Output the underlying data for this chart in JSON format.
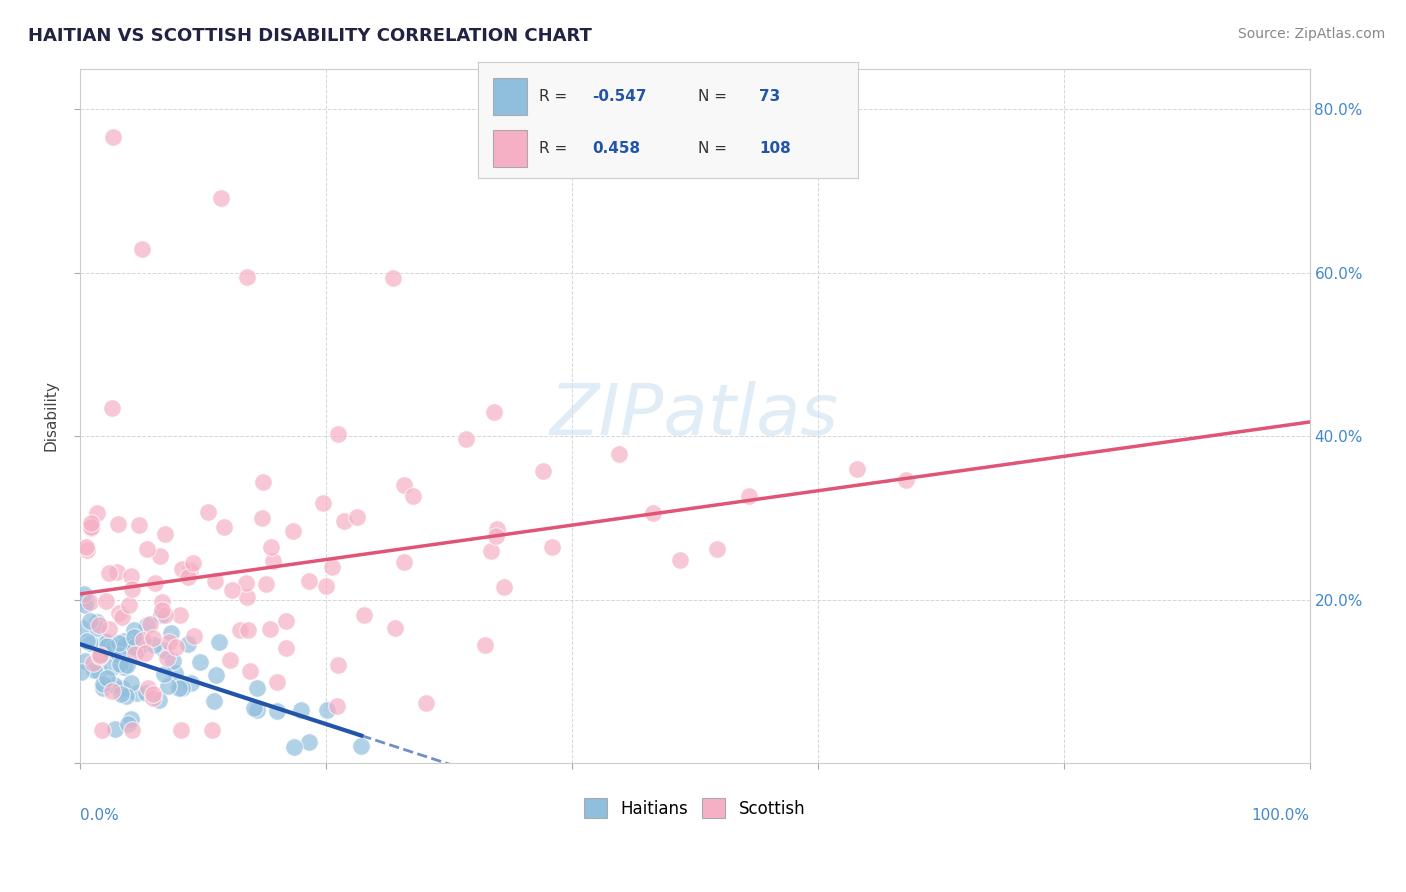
{
  "title": "HAITIAN VS SCOTTISH DISABILITY CORRELATION CHART",
  "source": "Source: ZipAtlas.com",
  "ylabel": "Disability",
  "legend_haitian_R": -0.547,
  "legend_haitian_N": 73,
  "legend_scottish_R": 0.458,
  "legend_scottish_N": 108,
  "haitian_color": "#90bedd",
  "scottish_color": "#f5b0c5",
  "trend_haitian_color": "#2255aa",
  "trend_scottish_color": "#e05575",
  "xlim": [
    0.0,
    1.0
  ],
  "ylim": [
    0.0,
    0.85
  ],
  "background": "#ffffff",
  "grid_color": "#cccccc",
  "watermark_color": "#c8dff0",
  "right_tick_color": "#4488cc",
  "title_color": "#222244",
  "source_color": "#888888"
}
